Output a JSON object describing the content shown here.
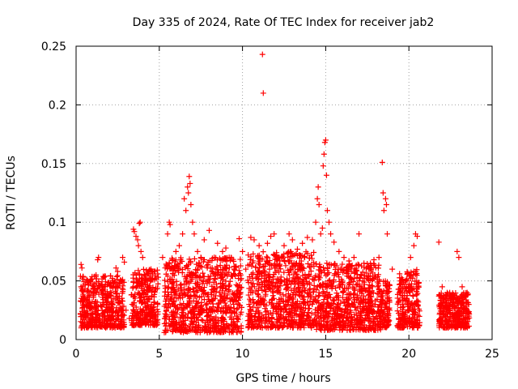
{
  "chart_data": {
    "type": "scatter",
    "title": "Day 335 of 2024, Rate Of TEC Index for receiver jab2",
    "xlabel": "GPS time / hours",
    "ylabel": "ROTI / TECUs",
    "xlim": [
      0,
      25
    ],
    "ylim": [
      0,
      0.25
    ],
    "xticks": [
      0,
      5,
      10,
      15,
      20,
      25
    ],
    "xtick_labels": [
      "0",
      "5",
      "10",
      "15",
      "20",
      "25"
    ],
    "yticks": [
      0,
      0.05,
      0.1,
      0.15,
      0.2,
      0.25
    ],
    "ytick_labels": [
      "0",
      "0.05",
      "0.1",
      "0.15",
      "0.2",
      "0.25"
    ],
    "grid": true,
    "marker": "+",
    "color": "#ff0000",
    "series": [
      {
        "name": "ROTI",
        "points": [
          [
            0.3,
            0.064
          ],
          [
            0.35,
            0.061
          ],
          [
            0.3,
            0.045
          ],
          [
            0.4,
            0.032
          ],
          [
            0.5,
            0.025
          ],
          [
            0.6,
            0.018
          ],
          [
            0.7,
            0.042
          ],
          [
            0.8,
            0.036
          ],
          [
            0.9,
            0.028
          ],
          [
            1.0,
            0.022
          ],
          [
            1.1,
            0.015
          ],
          [
            1.2,
            0.055
          ],
          [
            1.3,
            0.068
          ],
          [
            1.35,
            0.07
          ],
          [
            1.5,
            0.04
          ],
          [
            1.6,
            0.03
          ],
          [
            1.7,
            0.012
          ],
          [
            1.9,
            0.047
          ],
          [
            2.0,
            0.038
          ],
          [
            2.2,
            0.03
          ],
          [
            2.4,
            0.061
          ],
          [
            2.5,
            0.058
          ],
          [
            2.6,
            0.035
          ],
          [
            2.8,
            0.07
          ],
          [
            2.9,
            0.066
          ],
          [
            3.0,
            0.025
          ],
          [
            3.2,
            0.018
          ],
          [
            3.45,
            0.094
          ],
          [
            3.5,
            0.092
          ],
          [
            3.6,
            0.088
          ],
          [
            3.7,
            0.085
          ],
          [
            3.75,
            0.08
          ],
          [
            3.8,
            0.099
          ],
          [
            3.85,
            0.1
          ],
          [
            3.9,
            0.075
          ],
          [
            4.0,
            0.07
          ],
          [
            4.1,
            0.055
          ],
          [
            4.3,
            0.045
          ],
          [
            4.5,
            0.06
          ],
          [
            4.7,
            0.058
          ],
          [
            4.9,
            0.03
          ],
          [
            5.2,
            0.07
          ],
          [
            5.5,
            0.09
          ],
          [
            5.6,
            0.1
          ],
          [
            5.65,
            0.098
          ],
          [
            5.8,
            0.068
          ],
          [
            6.0,
            0.075
          ],
          [
            6.2,
            0.08
          ],
          [
            6.4,
            0.09
          ],
          [
            6.5,
            0.12
          ],
          [
            6.6,
            0.11
          ],
          [
            6.7,
            0.13
          ],
          [
            6.75,
            0.125
          ],
          [
            6.8,
            0.139
          ],
          [
            6.85,
            0.133
          ],
          [
            6.9,
            0.115
          ],
          [
            7.0,
            0.1
          ],
          [
            7.1,
            0.09
          ],
          [
            7.3,
            0.075
          ],
          [
            7.5,
            0.07
          ],
          [
            7.7,
            0.085
          ],
          [
            8.0,
            0.093
          ],
          [
            8.3,
            0.07
          ],
          [
            8.5,
            0.082
          ],
          [
            8.8,
            0.075
          ],
          [
            9.0,
            0.078
          ],
          [
            9.2,
            0.07
          ],
          [
            9.5,
            0.06
          ],
          [
            9.8,
            0.086
          ],
          [
            10.0,
            0.075
          ],
          [
            10.2,
            0.06
          ],
          [
            10.5,
            0.087
          ],
          [
            10.7,
            0.085
          ],
          [
            11.0,
            0.08
          ],
          [
            11.2,
            0.243
          ],
          [
            11.25,
            0.21
          ],
          [
            11.5,
            0.082
          ],
          [
            11.7,
            0.088
          ],
          [
            11.9,
            0.09
          ],
          [
            12.2,
            0.07
          ],
          [
            12.5,
            0.08
          ],
          [
            12.8,
            0.09
          ],
          [
            13.0,
            0.085
          ],
          [
            13.3,
            0.077
          ],
          [
            13.6,
            0.082
          ],
          [
            13.9,
            0.087
          ],
          [
            14.2,
            0.085
          ],
          [
            14.4,
            0.1
          ],
          [
            14.5,
            0.12
          ],
          [
            14.55,
            0.13
          ],
          [
            14.6,
            0.115
          ],
          [
            14.7,
            0.09
          ],
          [
            14.8,
            0.095
          ],
          [
            14.85,
            0.148
          ],
          [
            14.9,
            0.158
          ],
          [
            14.95,
            0.168
          ],
          [
            15.0,
            0.17
          ],
          [
            15.05,
            0.14
          ],
          [
            15.1,
            0.11
          ],
          [
            15.2,
            0.1
          ],
          [
            15.3,
            0.09
          ],
          [
            15.5,
            0.083
          ],
          [
            15.8,
            0.075
          ],
          [
            16.1,
            0.07
          ],
          [
            16.4,
            0.067
          ],
          [
            16.7,
            0.07
          ],
          [
            17.0,
            0.09
          ],
          [
            17.3,
            0.065
          ],
          [
            17.6,
            0.06
          ],
          [
            17.9,
            0.068
          ],
          [
            18.2,
            0.07
          ],
          [
            18.4,
            0.151
          ],
          [
            18.45,
            0.125
          ],
          [
            18.5,
            0.11
          ],
          [
            18.6,
            0.12
          ],
          [
            18.65,
            0.115
          ],
          [
            18.7,
            0.09
          ],
          [
            19.0,
            0.06
          ],
          [
            19.5,
            0.05
          ],
          [
            19.8,
            0.05
          ],
          [
            20.1,
            0.07
          ],
          [
            20.3,
            0.08
          ],
          [
            20.4,
            0.09
          ],
          [
            20.5,
            0.088
          ],
          [
            21.8,
            0.083
          ],
          [
            22.0,
            0.045
          ],
          [
            22.3,
            0.04
          ],
          [
            22.7,
            0.035
          ],
          [
            22.9,
            0.075
          ],
          [
            23.0,
            0.07
          ],
          [
            23.2,
            0.045
          ],
          [
            23.5,
            0.04
          ],
          [
            23.6,
            0.02
          ]
        ],
        "dense_segments": [
          {
            "x_start": 0.25,
            "x_end": 2.9,
            "y_low": 0.01,
            "y_high": 0.055
          },
          {
            "x_start": 3.3,
            "x_end": 4.95,
            "y_low": 0.012,
            "y_high": 0.06
          },
          {
            "x_start": 5.3,
            "x_end": 9.95,
            "y_low": 0.006,
            "y_high": 0.07
          },
          {
            "x_start": 10.3,
            "x_end": 14.3,
            "y_low": 0.01,
            "y_high": 0.075
          },
          {
            "x_start": 14.3,
            "x_end": 18.3,
            "y_low": 0.008,
            "y_high": 0.065
          },
          {
            "x_start": 18.3,
            "x_end": 18.85,
            "y_low": 0.01,
            "y_high": 0.05
          },
          {
            "x_start": 19.3,
            "x_end": 20.65,
            "y_low": 0.01,
            "y_high": 0.06
          },
          {
            "x_start": 21.8,
            "x_end": 23.65,
            "y_low": 0.01,
            "y_high": 0.04
          }
        ]
      }
    ]
  }
}
